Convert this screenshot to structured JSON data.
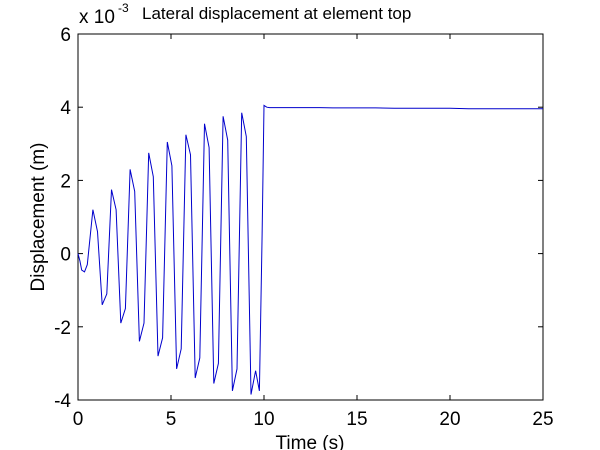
{
  "chart_data": {
    "type": "line",
    "title": "Lateral displacement at element top",
    "xlabel": "Time (s)",
    "ylabel": "Displacement (m)",
    "y_multiplier": {
      "base": "x 10",
      "exponent": "-3"
    },
    "xlim": [
      0,
      25
    ],
    "ylim": [
      -4,
      6
    ],
    "x_ticks": [
      0,
      5,
      10,
      15,
      20,
      25
    ],
    "y_ticks": [
      -4,
      -2,
      0,
      2,
      4,
      6
    ],
    "x_tick_labels": [
      "0",
      "5",
      "10",
      "15",
      "20",
      "25"
    ],
    "y_tick_labels": [
      "-4",
      "-2",
      "0",
      "2",
      "4",
      "6"
    ],
    "grid": false,
    "line_color": "#0000cc",
    "series": [
      {
        "x": [
          0,
          0.1,
          0.2,
          0.35,
          0.5,
          0.8,
          1.05,
          1.3,
          1.55,
          1.8,
          2.05,
          2.3,
          2.55,
          2.8,
          3.05,
          3.3,
          3.55,
          3.8,
          4.05,
          4.3,
          4.55,
          4.8,
          5.05,
          5.3,
          5.55,
          5.8,
          6.05,
          6.3,
          6.55,
          6.8,
          7.05,
          7.3,
          7.55,
          7.8,
          8.05,
          8.3,
          8.55,
          8.8,
          9.05,
          9.3,
          9.55,
          9.75,
          9.9,
          10.0,
          10.15,
          10.3,
          11,
          12,
          13,
          13.7,
          14,
          15,
          16,
          17,
          18,
          19,
          20,
          21,
          22,
          23,
          24,
          25
        ],
        "y": [
          0,
          -0.2,
          -0.45,
          -0.5,
          -0.3,
          1.2,
          0.6,
          -1.4,
          -1.1,
          1.75,
          1.2,
          -1.9,
          -1.5,
          2.3,
          1.7,
          -2.4,
          -1.9,
          2.75,
          2.1,
          -2.8,
          -2.3,
          3.05,
          2.4,
          -3.15,
          -2.6,
          3.25,
          2.7,
          -3.4,
          -2.85,
          3.55,
          2.9,
          -3.55,
          -3.0,
          3.75,
          3.1,
          -3.75,
          -3.15,
          3.85,
          3.2,
          -3.85,
          -3.2,
          -3.75,
          0.5,
          4.05,
          4.0,
          3.99,
          3.99,
          3.99,
          3.99,
          3.98,
          3.98,
          3.98,
          3.98,
          3.97,
          3.97,
          3.97,
          3.97,
          3.96,
          3.96,
          3.96,
          3.96,
          3.96
        ]
      }
    ]
  }
}
